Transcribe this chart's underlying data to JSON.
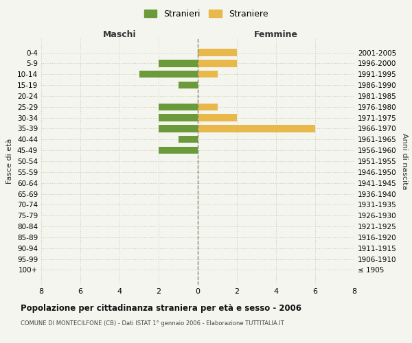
{
  "age_groups": [
    "0-4",
    "5-9",
    "10-14",
    "15-19",
    "20-24",
    "25-29",
    "30-34",
    "35-39",
    "40-44",
    "45-49",
    "50-54",
    "55-59",
    "60-64",
    "65-69",
    "70-74",
    "75-79",
    "80-84",
    "85-89",
    "90-94",
    "95-99",
    "100+"
  ],
  "birth_years": [
    "2001-2005",
    "1996-2000",
    "1991-1995",
    "1986-1990",
    "1981-1985",
    "1976-1980",
    "1971-1975",
    "1966-1970",
    "1961-1965",
    "1956-1960",
    "1951-1955",
    "1946-1950",
    "1941-1945",
    "1936-1940",
    "1931-1935",
    "1926-1930",
    "1921-1925",
    "1916-1920",
    "1911-1915",
    "1906-1910",
    "≤ 1905"
  ],
  "maschi": [
    0,
    2,
    3,
    1,
    0,
    2,
    2,
    2,
    1,
    2,
    0,
    0,
    0,
    0,
    0,
    0,
    0,
    0,
    0,
    0,
    0
  ],
  "femmine": [
    2,
    2,
    1,
    0,
    0,
    1,
    2,
    6,
    0,
    0,
    0,
    0,
    0,
    0,
    0,
    0,
    0,
    0,
    0,
    0,
    0
  ],
  "color_maschi": "#6a9a3a",
  "color_femmine": "#e8b84b",
  "title": "Popolazione per cittadinanza straniera per età e sesso - 2006",
  "subtitle": "COMUNE DI MONTECILFONE (CB) - Dati ISTAT 1° gennaio 2006 - Elaborazione TUTTITALIA.IT",
  "xlabel_left": "Maschi",
  "xlabel_right": "Femmine",
  "ylabel_left": "Fasce di età",
  "ylabel_right": "Anni di nascita",
  "legend_maschi": "Stranieri",
  "legend_femmine": "Straniere",
  "xlim": 8,
  "background_color": "#f5f5f0",
  "grid_color": "#ccccaa"
}
